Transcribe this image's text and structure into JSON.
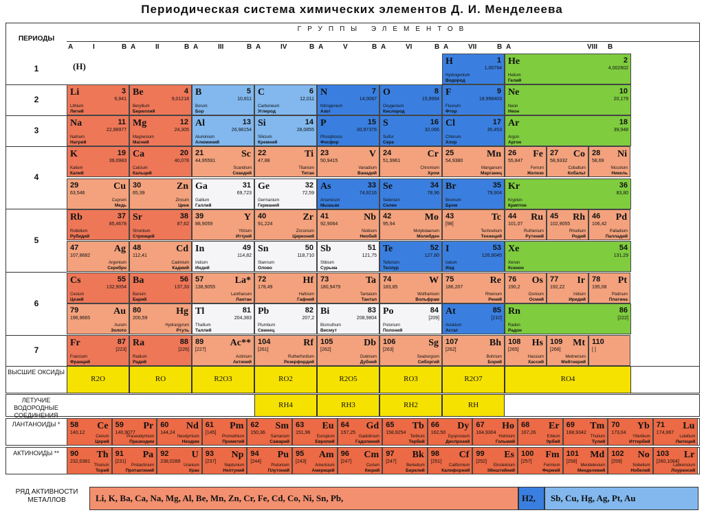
{
  "title": "Периодическая система химических элементов Д. И. Менделеева",
  "periods_label": "ПЕРИОДЫ",
  "groups_label": "ГРУППЫ ЭЛЕМЕНТОВ",
  "group_headers": [
    {
      "a": "A",
      "n": "I",
      "b": "B"
    },
    {
      "a": "A",
      "n": "II",
      "b": "B"
    },
    {
      "a": "A",
      "n": "III",
      "b": "B"
    },
    {
      "a": "A",
      "n": "IV",
      "b": "B"
    },
    {
      "a": "A",
      "n": "V",
      "b": "B"
    },
    {
      "a": "A",
      "n": "VI",
      "b": "B"
    },
    {
      "a": "A",
      "n": "VII",
      "b": "B"
    },
    {
      "a": "A",
      "n": "VIII",
      "b": "B"
    }
  ],
  "period_numbers": [
    "1",
    "2",
    "3",
    "4",
    "5",
    "6",
    "7"
  ],
  "h_placeholder": "(H)",
  "row_labels": {
    "oxides": "ВЫСШИЕ ОКСИДЫ",
    "hydrides": "ЛЕТУЧИЕ ВОДОРОДНЫЕ СОЕДИНЕНИЯ",
    "lanthanides": "ЛАНТАНОИДЫ *",
    "actinides": "АКТИНОИДЫ **",
    "activity": "РЯД АКТИВНОСТИ МЕТАЛЛОВ"
  },
  "oxides": [
    "R2O",
    "RO",
    "R2O3",
    "RO2",
    "R2O5",
    "RO3",
    "R2O7",
    "RO4"
  ],
  "hydrides": [
    "RH4",
    "RH3",
    "RH2",
    "RH"
  ],
  "activity_series": {
    "main": "Li, K, Ba, Ca, Na, Mg, Al, Be, Mn, Zn, Cr, Fe, Cd, Co, Ni, Sn, Pb,",
    "h": "H2,",
    "after": "Sb, Cu, Hg, Ag, Pt, Au"
  },
  "elements": [
    {
      "sym": "H",
      "num": "1",
      "mass": "1,00794",
      "lat": "Hydrogenium",
      "rus": "Водород"
    },
    {
      "sym": "He",
      "num": "2",
      "mass": "4,002602",
      "lat": "Helium",
      "rus": "Гелий"
    },
    {
      "sym": "Li",
      "num": "3",
      "mass": "6,941",
      "lat": "Lithium",
      "rus": "Литий"
    },
    {
      "sym": "Be",
      "num": "4",
      "mass": "9,01218",
      "lat": "Beryllium",
      "rus": "Бериллий"
    },
    {
      "sym": "B",
      "num": "5",
      "mass": "10,811",
      "lat": "Borum",
      "rus": "Бор"
    },
    {
      "sym": "C",
      "num": "6",
      "mass": "12,011",
      "lat": "Carboneum",
      "rus": "Углерод"
    },
    {
      "sym": "N",
      "num": "7",
      "mass": "14,0067",
      "lat": "Nitrogenium",
      "rus": "Азот"
    },
    {
      "sym": "O",
      "num": "8",
      "mass": "15,9994",
      "lat": "Oxygenium",
      "rus": "Кислород"
    },
    {
      "sym": "F",
      "num": "9",
      "mass": "18,998403",
      "lat": "Fluorum",
      "rus": "Фтор"
    },
    {
      "sym": "Ne",
      "num": "10",
      "mass": "20,179",
      "lat": "Neon",
      "rus": "Неон"
    },
    {
      "sym": "Na",
      "num": "11",
      "mass": "22,98977",
      "lat": "Natrium",
      "rus": "Натрий"
    },
    {
      "sym": "Mg",
      "num": "12",
      "mass": "24,305",
      "lat": "Magnesium",
      "rus": "Магний"
    },
    {
      "sym": "Al",
      "num": "13",
      "mass": "26,98154",
      "lat": "Aluminium",
      "rus": "Алюминий"
    },
    {
      "sym": "Si",
      "num": "14",
      "mass": "28,0855",
      "lat": "Silicium",
      "rus": "Кремний"
    },
    {
      "sym": "P",
      "num": "15",
      "mass": "30,97376",
      "lat": "Phosphorus",
      "rus": "Фосфор"
    },
    {
      "sym": "S",
      "num": "16",
      "mass": "32,066",
      "lat": "Sulfur",
      "rus": "Сера"
    },
    {
      "sym": "Cl",
      "num": "17",
      "mass": "35,453",
      "lat": "Chlorum",
      "rus": "Хлор"
    },
    {
      "sym": "Ar",
      "num": "18",
      "mass": "39,948",
      "lat": "Argon",
      "rus": "Аргон"
    },
    {
      "sym": "K",
      "num": "19",
      "mass": "39,0983",
      "lat": "Kalium",
      "rus": "Калий"
    },
    {
      "sym": "Ca",
      "num": "20",
      "mass": "40,078",
      "lat": "Calcium",
      "rus": "Кальций"
    },
    {
      "sym": "Sc",
      "num": "21",
      "mass": "44,95591",
      "lat": "Scandium",
      "rus": "Скандий"
    },
    {
      "sym": "Ti",
      "num": "22",
      "mass": "47,88",
      "lat": "Titanium",
      "rus": "Титан"
    },
    {
      "sym": "V",
      "num": "23",
      "mass": "50,9415",
      "lat": "Vanadium",
      "rus": "Ванадий"
    },
    {
      "sym": "Cr",
      "num": "24",
      "mass": "51,9961",
      "lat": "Chromium",
      "rus": "Хром"
    },
    {
      "sym": "Mn",
      "num": "25",
      "mass": "54,9380",
      "lat": "Manganum",
      "rus": "Марганец"
    },
    {
      "sym": "Fe",
      "num": "26",
      "mass": "55,847",
      "lat": "Ferrum",
      "rus": "Железо"
    },
    {
      "sym": "Co",
      "num": "27",
      "mass": "58,9332",
      "lat": "Cobaltum",
      "rus": "Кобальт"
    },
    {
      "sym": "Ni",
      "num": "28",
      "mass": "58,69",
      "lat": "Niccolum",
      "rus": "Никель"
    },
    {
      "sym": "Cu",
      "num": "29",
      "mass": "63,546",
      "lat": "Cuprum",
      "rus": "Медь"
    },
    {
      "sym": "Zn",
      "num": "30",
      "mass": "65,39",
      "lat": "Zincum",
      "rus": "Цинк"
    },
    {
      "sym": "Ga",
      "num": "31",
      "mass": "69,723",
      "lat": "Gallium",
      "rus": "Галлий"
    },
    {
      "sym": "Ge",
      "num": "32",
      "mass": "72,59",
      "lat": "Germanium",
      "rus": "Германий"
    },
    {
      "sym": "As",
      "num": "33",
      "mass": "74,9216",
      "lat": "Arsenicum",
      "rus": "Мышьяк"
    },
    {
      "sym": "Se",
      "num": "34",
      "mass": "78,96",
      "lat": "Selenium",
      "rus": "Селен"
    },
    {
      "sym": "Br",
      "num": "35",
      "mass": "79,904",
      "lat": "Bromum",
      "rus": "Бром"
    },
    {
      "sym": "Kr",
      "num": "36",
      "mass": "83,80",
      "lat": "Krypton",
      "rus": "Криптон"
    },
    {
      "sym": "Rb",
      "num": "37",
      "mass": "85,4678",
      "lat": "Rubidium",
      "rus": "Рубидий"
    },
    {
      "sym": "Sr",
      "num": "38",
      "mass": "87,62",
      "lat": "Strontium",
      "rus": "Стронций"
    },
    {
      "sym": "Y",
      "num": "39",
      "mass": "88,9059",
      "lat": "Yttrium",
      "rus": "Иттрий"
    },
    {
      "sym": "Zr",
      "num": "40",
      "mass": "91,224",
      "lat": "Zirconium",
      "rus": "Цирконий"
    },
    {
      "sym": "Nb",
      "num": "41",
      "mass": "92,9064",
      "lat": "Niobium",
      "rus": "Ниобий"
    },
    {
      "sym": "Mo",
      "num": "42",
      "mass": "95,94",
      "lat": "Molybdaenum",
      "rus": "Молибден"
    },
    {
      "sym": "Tc",
      "num": "43",
      "mass": "[98]",
      "lat": "Technetium",
      "rus": "Технеций"
    },
    {
      "sym": "Ru",
      "num": "44",
      "mass": "101,07",
      "lat": "Ruthenium",
      "rus": "Рутений"
    },
    {
      "sym": "Rh",
      "num": "45",
      "mass": "102,9055",
      "lat": "Rhodium",
      "rus": "Родий"
    },
    {
      "sym": "Pd",
      "num": "46",
      "mass": "106,42",
      "lat": "Palladium",
      "rus": "Палладий"
    },
    {
      "sym": "Ag",
      "num": "47",
      "mass": "107,8682",
      "lat": "Argentum",
      "rus": "Серебро"
    },
    {
      "sym": "Cd",
      "num": "48",
      "mass": "112,41",
      "lat": "Cadmium",
      "rus": "Кадмий"
    },
    {
      "sym": "In",
      "num": "49",
      "mass": "114,82",
      "lat": "Indium",
      "rus": "Индий"
    },
    {
      "sym": "Sn",
      "num": "50",
      "mass": "118,710",
      "lat": "Stannum",
      "rus": "Олово"
    },
    {
      "sym": "Sb",
      "num": "51",
      "mass": "121,75",
      "lat": "Stibium",
      "rus": "Сурьма"
    },
    {
      "sym": "Te",
      "num": "52",
      "mass": "127,60",
      "lat": "Tellurium",
      "rus": "Теллур"
    },
    {
      "sym": "I",
      "num": "53",
      "mass": "126,9045",
      "lat": "Iodum",
      "rus": "Иод"
    },
    {
      "sym": "Xe",
      "num": "54",
      "mass": "131,29",
      "lat": "Xenon",
      "rus": "Ксенон"
    },
    {
      "sym": "Cs",
      "num": "55",
      "mass": "132,9054",
      "lat": "Cesium",
      "rus": "Цезий"
    },
    {
      "sym": "Ba",
      "num": "56",
      "mass": "137,33",
      "lat": "Barium",
      "rus": "Барий"
    },
    {
      "sym": "La*",
      "num": "57",
      "mass": "138,9055",
      "lat": "Lanthanum",
      "rus": "Лантан"
    },
    {
      "sym": "Hf",
      "num": "72",
      "mass": "178,49",
      "lat": "Hafnium",
      "rus": "Гафний"
    },
    {
      "sym": "Ta",
      "num": "73",
      "mass": "180,9479",
      "lat": "Tantalum",
      "rus": "Тантал"
    },
    {
      "sym": "W",
      "num": "74",
      "mass": "183,85",
      "lat": "Wolframium",
      "rus": "Вольфрам"
    },
    {
      "sym": "Re",
      "num": "75",
      "mass": "186,207",
      "lat": "Rhenium",
      "rus": "Рений"
    },
    {
      "sym": "Os",
      "num": "76",
      "mass": "190,2",
      "lat": "Osmium",
      "rus": "Осмий"
    },
    {
      "sym": "Ir",
      "num": "77",
      "mass": "192,22",
      "lat": "Iridium",
      "rus": "Иридий"
    },
    {
      "sym": "Pt",
      "num": "78",
      "mass": "195,08",
      "lat": "Platinum",
      "rus": "Платина"
    },
    {
      "sym": "Au",
      "num": "79",
      "mass": "196,9665",
      "lat": "Aurum",
      "rus": "Золото"
    },
    {
      "sym": "Hg",
      "num": "80",
      "mass": "200,59",
      "lat": "Hydrargyrum",
      "rus": "Ртуть"
    },
    {
      "sym": "Tl",
      "num": "81",
      "mass": "204,383",
      "lat": "Thallium",
      "rus": "Таллий"
    },
    {
      "sym": "Pb",
      "num": "82",
      "mass": "207,2",
      "lat": "Plumbum",
      "rus": "Свинец"
    },
    {
      "sym": "Bi",
      "num": "83",
      "mass": "208,9804",
      "lat": "Bismuthum",
      "rus": "Висмут"
    },
    {
      "sym": "Po",
      "num": "84",
      "mass": "[209]",
      "lat": "Polonium",
      "rus": "Полоний"
    },
    {
      "sym": "At",
      "num": "85",
      "mass": "[210]",
      "lat": "Astatium",
      "rus": "Астат"
    },
    {
      "sym": "Rn",
      "num": "86",
      "mass": "[222]",
      "lat": "Radon",
      "rus": "Радон"
    },
    {
      "sym": "Fr",
      "num": "87",
      "mass": "[223]",
      "lat": "Francium",
      "rus": "Франций"
    },
    {
      "sym": "Ra",
      "num": "88",
      "mass": "[226]",
      "lat": "Radium",
      "rus": "Радий"
    },
    {
      "sym": "Ac**",
      "num": "89",
      "mass": "[227]",
      "lat": "Actinium",
      "rus": "Актиний"
    },
    {
      "sym": "Rf",
      "num": "104",
      "mass": "[261]",
      "lat": "Rutherfordium",
      "rus": "Резерфордий"
    },
    {
      "sym": "Db",
      "num": "105",
      "mass": "[262]",
      "lat": "Dubnium",
      "rus": "Дубний"
    },
    {
      "sym": "Sg",
      "num": "106",
      "mass": "[263]",
      "lat": "Seaborgium",
      "rus": "Сиборгий"
    },
    {
      "sym": "Bh",
      "num": "107",
      "mass": "[262]",
      "lat": "Bohrium",
      "rus": "Борий"
    },
    {
      "sym": "Hs",
      "num": "108",
      "mass": "[265]",
      "lat": "Hassium",
      "rus": "Хассий"
    },
    {
      "sym": "Mt",
      "num": "109",
      "mass": "[266]",
      "lat": "Meitnerium",
      "rus": "Мейтнерий"
    },
    {
      "sym": "",
      "num": "110",
      "mass": "[ ]",
      "lat": "",
      "rus": ""
    }
  ],
  "lanthanides": [
    {
      "sym": "Ce",
      "num": "58",
      "mass": "140,12",
      "lat": "Cerium",
      "rus": "Церий"
    },
    {
      "sym": "Pr",
      "num": "59",
      "mass": "140,9077",
      "lat": "Praseodymium",
      "rus": "Празеодим"
    },
    {
      "sym": "Nd",
      "num": "60",
      "mass": "144,24",
      "lat": "Neodymium",
      "rus": "Неодим"
    },
    {
      "sym": "Pm",
      "num": "61",
      "mass": "[145]",
      "lat": "Promethium",
      "rus": "Прометий"
    },
    {
      "sym": "Sm",
      "num": "62",
      "mass": "150,36",
      "lat": "Samarium",
      "rus": "Самарий"
    },
    {
      "sym": "Eu",
      "num": "63",
      "mass": "151,96",
      "lat": "Europium",
      "rus": "Европий"
    },
    {
      "sym": "Gd",
      "num": "64",
      "mass": "157,25",
      "lat": "Gadolinium",
      "rus": "Гадолиний"
    },
    {
      "sym": "Tb",
      "num": "65",
      "mass": "158,9254",
      "lat": "Terbium",
      "rus": "Тербий"
    },
    {
      "sym": "Dy",
      "num": "66",
      "mass": "162,50",
      "lat": "Dysprosium",
      "rus": "Диспрозий"
    },
    {
      "sym": "Ho",
      "num": "67",
      "mass": "164,9304",
      "lat": "Holmium",
      "rus": "Гольмий"
    },
    {
      "sym": "Er",
      "num": "68",
      "mass": "167,26",
      "lat": "Erbium",
      "rus": "Эрбий"
    },
    {
      "sym": "Tm",
      "num": "69",
      "mass": "168,9342",
      "lat": "Thulium",
      "rus": "Тулий"
    },
    {
      "sym": "Yb",
      "num": "70",
      "mass": "173,04",
      "lat": "Ytterbium",
      "rus": "Иттербий"
    },
    {
      "sym": "Lu",
      "num": "71",
      "mass": "174,967",
      "lat": "Lutetium",
      "rus": "Лютеций"
    }
  ],
  "actinides": [
    {
      "sym": "Th",
      "num": "90",
      "mass": "232,0381",
      "lat": "Thorium",
      "rus": "Торий"
    },
    {
      "sym": "Pa",
      "num": "91",
      "mass": "[231]",
      "lat": "Protactinium",
      "rus": "Протактиний"
    },
    {
      "sym": "U",
      "num": "92",
      "mass": "238,0289",
      "lat": "Uranium",
      "rus": "Уран"
    },
    {
      "sym": "Np",
      "num": "93",
      "mass": "[237]",
      "lat": "Neptunium",
      "rus": "Нептуний"
    },
    {
      "sym": "Pu",
      "num": "94",
      "mass": "[244]",
      "lat": "Plutonium",
      "rus": "Плутоний"
    },
    {
      "sym": "Am",
      "num": "95",
      "mass": "[243]",
      "lat": "Americium",
      "rus": "Америций"
    },
    {
      "sym": "Cm",
      "num": "96",
      "mass": "[247]",
      "lat": "Curium",
      "rus": "Кюрий"
    },
    {
      "sym": "Bk",
      "num": "97",
      "mass": "[247]",
      "lat": "Berkelium",
      "rus": "Берклий"
    },
    {
      "sym": "Cf",
      "num": "98",
      "mass": "[251]",
      "lat": "Californium",
      "rus": "Калифорний"
    },
    {
      "sym": "Es",
      "num": "99",
      "mass": "[252]",
      "lat": "Einsteinium",
      "rus": "Эйнштейний"
    },
    {
      "sym": "Fm",
      "num": "100",
      "mass": "[257]",
      "lat": "Fermium",
      "rus": "Фермий"
    },
    {
      "sym": "Md",
      "num": "101",
      "mass": "[258]",
      "lat": "Mendelevium",
      "rus": "Менделевий"
    },
    {
      "sym": "No",
      "num": "102",
      "mass": "[259]",
      "lat": "Nobelium",
      "rus": "Нобелий"
    },
    {
      "sym": "Lr",
      "num": "103",
      "mass": "[260,1064]",
      "lat": "Lawrencium",
      "rus": "Лоуренсий"
    }
  ]
}
